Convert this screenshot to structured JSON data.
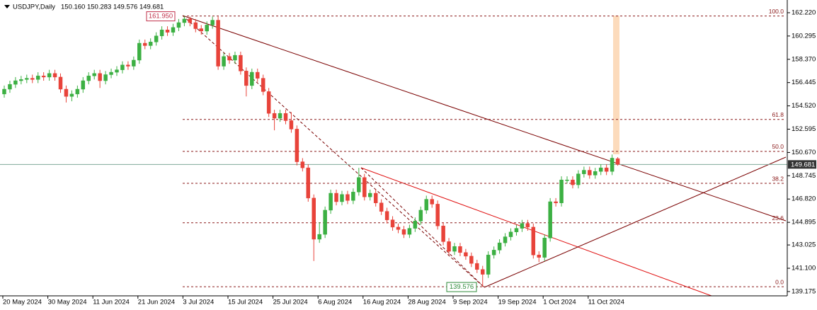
{
  "chart_data": {
    "type": "candlestick",
    "title": "USDJPY,Daily",
    "subtitle": "150.160 150.283 149.576 149.681",
    "categories": [
      "20 May 2024",
      null,
      null,
      null,
      null,
      null,
      null,
      null,
      "30 May 2024",
      null,
      null,
      null,
      null,
      null,
      null,
      null,
      "11 Jun 2024",
      null,
      null,
      null,
      null,
      null,
      null,
      null,
      "21 Jun 2024",
      null,
      null,
      null,
      null,
      null,
      null,
      null,
      "3 Jul 2024",
      null,
      null,
      null,
      null,
      null,
      null,
      null,
      "15 Jul 2024",
      null,
      null,
      null,
      null,
      null,
      null,
      null,
      "25 Jul 2024",
      null,
      null,
      null,
      null,
      null,
      null,
      null,
      "6 Aug 2024",
      null,
      null,
      null,
      null,
      null,
      null,
      null,
      "16 Aug 2024",
      null,
      null,
      null,
      null,
      null,
      null,
      null,
      "28 Aug 2024",
      null,
      null,
      null,
      null,
      null,
      null,
      null,
      "9 Sep 2024",
      null,
      null,
      null,
      null,
      null,
      null,
      null,
      "19 Sep 2024",
      null,
      null,
      null,
      null,
      null,
      null,
      null,
      "1 Oct 2024",
      null,
      null,
      null,
      null,
      null,
      null,
      null,
      "11 Oct 2024",
      null,
      null,
      null,
      null,
      null
    ],
    "open": [
      155.5,
      155.9,
      156.3,
      156.6,
      156.7,
      156.8,
      156.7,
      157.0,
      156.9,
      157.2,
      156.9,
      155.9,
      155.3,
      155.5,
      155.9,
      156.6,
      157.0,
      157.2,
      156.6,
      157.1,
      157.3,
      157.5,
      157.9,
      157.8,
      158.3,
      159.7,
      159.5,
      159.8,
      160.3,
      160.8,
      160.6,
      161.0,
      161.4,
      161.7,
      161.4,
      160.9,
      160.7,
      161.2,
      161.6,
      157.8,
      158.6,
      158.3,
      158.7,
      157.4,
      156.2,
      157.3,
      156.8,
      155.7,
      153.9,
      153.5,
      153.9,
      153.3,
      152.6,
      149.9,
      149.4,
      146.9,
      143.5,
      143.9,
      145.9,
      147.3,
      146.6,
      147.2,
      146.7,
      147.4,
      148.6,
      147.0,
      147.3,
      146.5,
      145.8,
      145.1,
      144.5,
      144.3,
      143.9,
      144.4,
      145.0,
      145.9,
      146.8,
      146.4,
      144.6,
      143.3,
      142.5,
      142.9,
      142.4,
      142.1,
      141.5,
      141.0,
      140.6,
      142.2,
      142.6,
      143.2,
      143.7,
      144.1,
      144.4,
      144.8,
      144.5,
      142.2,
      142.0,
      143.6,
      146.6,
      146.5,
      148.4,
      148.4,
      148.0,
      148.9,
      149.2,
      148.8,
      149.1,
      149.4,
      149.1,
      150.16
    ],
    "high": [
      156.2,
      156.6,
      156.9,
      157.0,
      157.1,
      157.1,
      157.3,
      157.3,
      157.5,
      157.5,
      157.2,
      156.2,
      155.8,
      156.2,
      156.9,
      157.3,
      157.5,
      157.5,
      157.4,
      157.6,
      157.8,
      158.2,
      158.2,
      158.6,
      160.0,
      160.0,
      160.1,
      160.6,
      161.1,
      161.1,
      161.3,
      161.7,
      161.95,
      161.9,
      161.7,
      161.2,
      161.5,
      161.9,
      161.9,
      158.9,
      158.9,
      159.0,
      159.0,
      157.7,
      157.6,
      157.6,
      157.1,
      156.0,
      154.2,
      154.2,
      154.2,
      154.0,
      152.9,
      150.2,
      149.7,
      147.2,
      144.9,
      146.2,
      147.6,
      147.6,
      147.5,
      147.5,
      147.7,
      149.4,
      148.9,
      147.6,
      147.6,
      146.8,
      146.1,
      145.4,
      144.8,
      144.6,
      144.7,
      145.3,
      146.2,
      147.1,
      147.1,
      146.7,
      144.9,
      143.6,
      143.2,
      143.2,
      142.7,
      142.4,
      141.8,
      141.3,
      142.5,
      142.9,
      143.5,
      144.0,
      144.4,
      144.7,
      145.1,
      145.1,
      144.8,
      142.5,
      143.9,
      146.9,
      146.9,
      148.7,
      148.7,
      148.7,
      149.2,
      149.5,
      149.5,
      149.4,
      149.7,
      149.7,
      150.5,
      150.283
    ],
    "low": [
      155.2,
      155.6,
      156.0,
      156.3,
      156.4,
      156.4,
      156.4,
      156.6,
      156.6,
      156.6,
      155.6,
      154.8,
      154.9,
      155.2,
      155.6,
      156.3,
      156.7,
      156.0,
      156.3,
      156.8,
      157.0,
      157.2,
      157.5,
      157.5,
      158.0,
      159.2,
      159.2,
      159.5,
      160.0,
      160.3,
      160.3,
      160.7,
      161.1,
      161.1,
      160.6,
      160.4,
      160.4,
      160.9,
      157.5,
      157.5,
      158.0,
      158.0,
      157.1,
      155.3,
      155.9,
      156.5,
      155.4,
      153.6,
      152.5,
      153.2,
      153.0,
      152.3,
      149.6,
      149.1,
      146.6,
      141.7,
      143.2,
      143.6,
      145.6,
      146.3,
      146.3,
      146.4,
      146.4,
      147.1,
      146.7,
      146.7,
      146.2,
      145.5,
      144.8,
      144.2,
      144.0,
      143.6,
      143.6,
      144.1,
      144.7,
      145.6,
      146.1,
      144.3,
      143.0,
      142.2,
      142.2,
      142.1,
      141.8,
      141.2,
      140.7,
      139.576,
      140.3,
      141.9,
      142.3,
      142.9,
      143.4,
      143.8,
      144.1,
      144.2,
      141.9,
      141.6,
      141.7,
      143.3,
      146.2,
      146.2,
      148.1,
      147.7,
      147.7,
      148.6,
      148.5,
      148.5,
      148.8,
      148.8,
      148.8,
      149.576
    ],
    "close": [
      155.9,
      156.3,
      156.6,
      156.7,
      156.8,
      156.7,
      157.0,
      156.9,
      157.2,
      156.9,
      155.9,
      155.3,
      155.5,
      155.9,
      156.6,
      157.0,
      157.2,
      156.6,
      157.1,
      157.3,
      157.5,
      157.9,
      157.8,
      158.3,
      159.7,
      159.5,
      159.8,
      160.3,
      160.8,
      160.6,
      161.0,
      161.4,
      161.7,
      161.4,
      160.9,
      160.7,
      161.2,
      161.6,
      157.8,
      158.6,
      158.3,
      158.7,
      157.4,
      156.2,
      157.3,
      156.8,
      155.7,
      153.9,
      153.5,
      153.9,
      153.3,
      152.6,
      149.9,
      149.4,
      146.9,
      143.5,
      143.9,
      145.9,
      147.3,
      146.6,
      147.2,
      146.7,
      147.4,
      148.6,
      147.0,
      147.3,
      146.5,
      145.8,
      145.1,
      144.5,
      144.3,
      143.9,
      144.4,
      145.0,
      145.9,
      146.8,
      146.4,
      144.6,
      143.3,
      142.5,
      142.9,
      142.4,
      142.1,
      141.5,
      141.0,
      140.6,
      142.2,
      142.6,
      143.2,
      143.7,
      144.1,
      144.4,
      144.8,
      144.5,
      142.2,
      142.0,
      143.6,
      146.6,
      146.5,
      148.4,
      148.4,
      148.0,
      148.9,
      149.2,
      148.8,
      149.1,
      149.4,
      149.1,
      150.2,
      149.681
    ],
    "up_color": "#3cb043",
    "down_color": "#e8433a",
    "ylim": [
      138.82,
      163.27
    ],
    "yticks": [
      {
        "value": 162.22,
        "label": "162.220"
      },
      {
        "value": 160.295,
        "label": "160.295"
      },
      {
        "value": 158.37,
        "label": "158.370"
      },
      {
        "value": 156.445,
        "label": "156.445"
      },
      {
        "value": 154.52,
        "label": "154.520"
      },
      {
        "value": 152.595,
        "label": "152.595"
      },
      {
        "value": 150.67,
        "label": "150.670"
      },
      {
        "value": 148.745,
        "label": "148.745"
      },
      {
        "value": 146.82,
        "label": "146.820"
      },
      {
        "value": 144.895,
        "label": "144.895"
      },
      {
        "value": 143.025,
        "label": "143.025"
      },
      {
        "value": 141.1,
        "label": "141.100"
      },
      {
        "value": 139.175,
        "label": "139.175"
      }
    ],
    "fib_labels": [
      "100.0",
      "61.8",
      "50.0",
      "38.2",
      "23.6",
      "0.0"
    ],
    "fib_prices": [
      161.95,
      153.4,
      150.763,
      148.12,
      144.856,
      139.576
    ],
    "high_label": {
      "value": 161.95,
      "label": "161.950"
    },
    "low_label": {
      "value": 139.576,
      "label": "139.576"
    },
    "last_price": {
      "value": 149.681,
      "label": "149.681"
    }
  }
}
